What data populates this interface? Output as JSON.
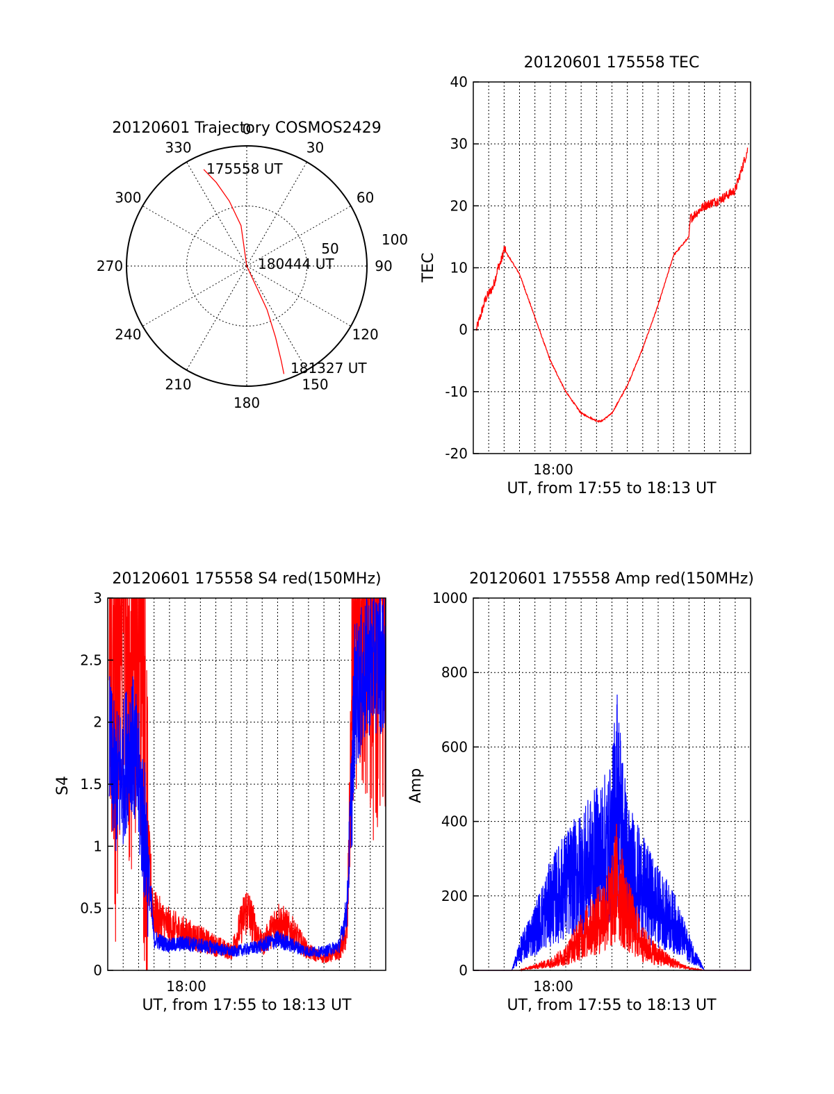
{
  "colors": {
    "red": "#ff0000",
    "blue": "#0000ff",
    "axis": "#000000",
    "grid": "#000000"
  },
  "panels": {
    "trajectory": {
      "title": "20120601 Trajectory COSMOS2429",
      "azimuth_labels": [
        "0",
        "30",
        "60",
        "90",
        "120",
        "150",
        "180",
        "210",
        "240",
        "270",
        "300",
        "330"
      ],
      "ring_labels": [
        "50",
        "100"
      ],
      "start_label": "175558 UT",
      "mid_label": "180444 UT",
      "end_label": "181327 UT"
    },
    "tec": {
      "title": "20120601 175558 TEC",
      "ylabel": "TEC",
      "xtick": "18:00",
      "xlabel": "UT, from 17:55 to 18:13 UT",
      "yticks": [
        "40",
        "30",
        "20",
        "10",
        "0",
        "-10",
        "-20"
      ]
    },
    "s4": {
      "title": "20120601 175558 S4 red(150MHz)",
      "ylabel": "S4",
      "xtick": "18:00",
      "xlabel": "UT, from 17:55 to 18:13 UT",
      "yticks": [
        "3",
        "2.5",
        "2",
        "1.5",
        "1",
        "0.5",
        "0"
      ]
    },
    "amp": {
      "title": "20120601 175558 Amp red(150MHz)",
      "ylabel": "Amp",
      "xtick": "18:00",
      "xlabel": "UT, from 17:55 to 18:13 UT",
      "yticks": [
        "1000",
        "800",
        "600",
        "400",
        "200",
        "0"
      ]
    }
  },
  "chart_data": [
    {
      "type": "scatter",
      "subtype": "polar-trajectory",
      "title": "20120601 Trajectory COSMOS2429",
      "azimuth_deg": [
        336,
        340,
        345,
        352,
        0,
        155,
        158,
        160,
        161
      ],
      "zenith_deg": [
        88,
        74,
        56,
        34,
        0,
        40,
        64,
        84,
        95
      ],
      "rlim": [
        0,
        100
      ],
      "labels": [
        "175558 UT",
        "180444 UT",
        "181327 UT"
      ],
      "series_color": "#ff0000",
      "grid": true
    },
    {
      "type": "line",
      "title": "20120601 175558 TEC",
      "xlabel": "UT, from 17:55 to 18:13 UT",
      "ylabel": "TEC",
      "x_minutes_after_1755": [
        0.2,
        0.8,
        1.3,
        1.6,
        1.8,
        2.0,
        3.0,
        4.0,
        5.0,
        6.0,
        7.0,
        8.0,
        8.3,
        9.0,
        10.0,
        11.0,
        12.0,
        13.0,
        14.0,
        14.1,
        15.0,
        16.0,
        17.0,
        17.8
      ],
      "values": [
        0,
        5,
        7,
        10,
        11,
        13,
        9,
        2,
        -5,
        -10,
        -13.5,
        -14.7,
        -14.8,
        -13.5,
        -9,
        -3,
        4,
        12,
        15,
        18,
        20,
        21,
        22.5,
        29
      ],
      "xlim": [
        "17:55",
        "18:13"
      ],
      "xticks": [
        "18:00"
      ],
      "ylim": [
        -20,
        40
      ],
      "series_color": "#ff0000",
      "grid": true
    },
    {
      "type": "line",
      "title": "20120601 175558 S4 red(150MHz)",
      "xlabel": "UT, from 17:55 to 18:13 UT",
      "ylabel": "S4",
      "xlim": [
        "17:55",
        "18:13"
      ],
      "xticks": [
        "18:00"
      ],
      "ylim": [
        0,
        3
      ],
      "series": [
        {
          "color": "#0000ff",
          "x_minutes_after_1755": [
            0.1,
            0.5,
            1.0,
            1.5,
            2.0,
            2.5,
            3.0,
            4.0,
            5.0,
            6.0,
            7.0,
            8.0,
            9.0,
            10.0,
            11.0,
            12.0,
            13.0,
            14.0,
            15.0,
            15.5,
            16.0,
            17.0,
            18.0
          ],
          "values": [
            1.8,
            1.5,
            1.6,
            1.9,
            1.5,
            1.0,
            0.25,
            0.2,
            0.22,
            0.2,
            0.18,
            0.15,
            0.17,
            0.2,
            0.25,
            0.2,
            0.15,
            0.15,
            0.2,
            0.5,
            2.2,
            2.5,
            2.5
          ]
        },
        {
          "color": "#ff0000",
          "x_minutes_after_1755": [
            0.1,
            0.5,
            1.0,
            1.5,
            2.0,
            2.5,
            3.0,
            4.0,
            5.0,
            6.0,
            7.0,
            8.0,
            9.0,
            10.0,
            11.0,
            12.0,
            13.0,
            14.0,
            15.0,
            15.5,
            16.0,
            17.0,
            18.0
          ],
          "values": [
            3.0,
            1.6,
            3.0,
            2.0,
            3.0,
            1.0,
            0.45,
            0.35,
            0.3,
            0.25,
            0.2,
            0.15,
            0.5,
            0.2,
            0.4,
            0.3,
            0.15,
            0.1,
            0.15,
            0.3,
            3.0,
            2.5,
            2.5
          ]
        }
      ],
      "grid": true
    },
    {
      "type": "line",
      "title": "20120601 175558 Amp red(150MHz)",
      "xlabel": "UT, from 17:55 to 18:13 UT",
      "ylabel": "Amp",
      "xlim": [
        "17:55",
        "18:13"
      ],
      "xticks": [
        "18:00"
      ],
      "ylim": [
        0,
        1000
      ],
      "series": [
        {
          "color": "#0000ff",
          "x_minutes_after_1755": [
            0,
            2.5,
            3.0,
            4.0,
            5.0,
            6.0,
            7.0,
            8.0,
            9.0,
            9.3,
            10.0,
            11.0,
            12.0,
            13.0,
            14.0,
            15.0,
            16.0,
            18.0
          ],
          "values": [
            0,
            0,
            50,
            110,
            180,
            230,
            260,
            300,
            340,
            480,
            280,
            220,
            170,
            130,
            60,
            0,
            0,
            0
          ]
        },
        {
          "color": "#ff0000",
          "x_minutes_after_1755": [
            0,
            3.0,
            4.0,
            5.0,
            6.0,
            7.0,
            8.0,
            9.0,
            9.3,
            10.0,
            11.0,
            12.0,
            13.0,
            14.0,
            15.0,
            16.0,
            18.0
          ],
          "values": [
            0,
            0,
            10,
            20,
            40,
            90,
            130,
            180,
            240,
            150,
            70,
            40,
            20,
            5,
            0,
            0,
            0
          ]
        }
      ],
      "grid": true
    }
  ]
}
